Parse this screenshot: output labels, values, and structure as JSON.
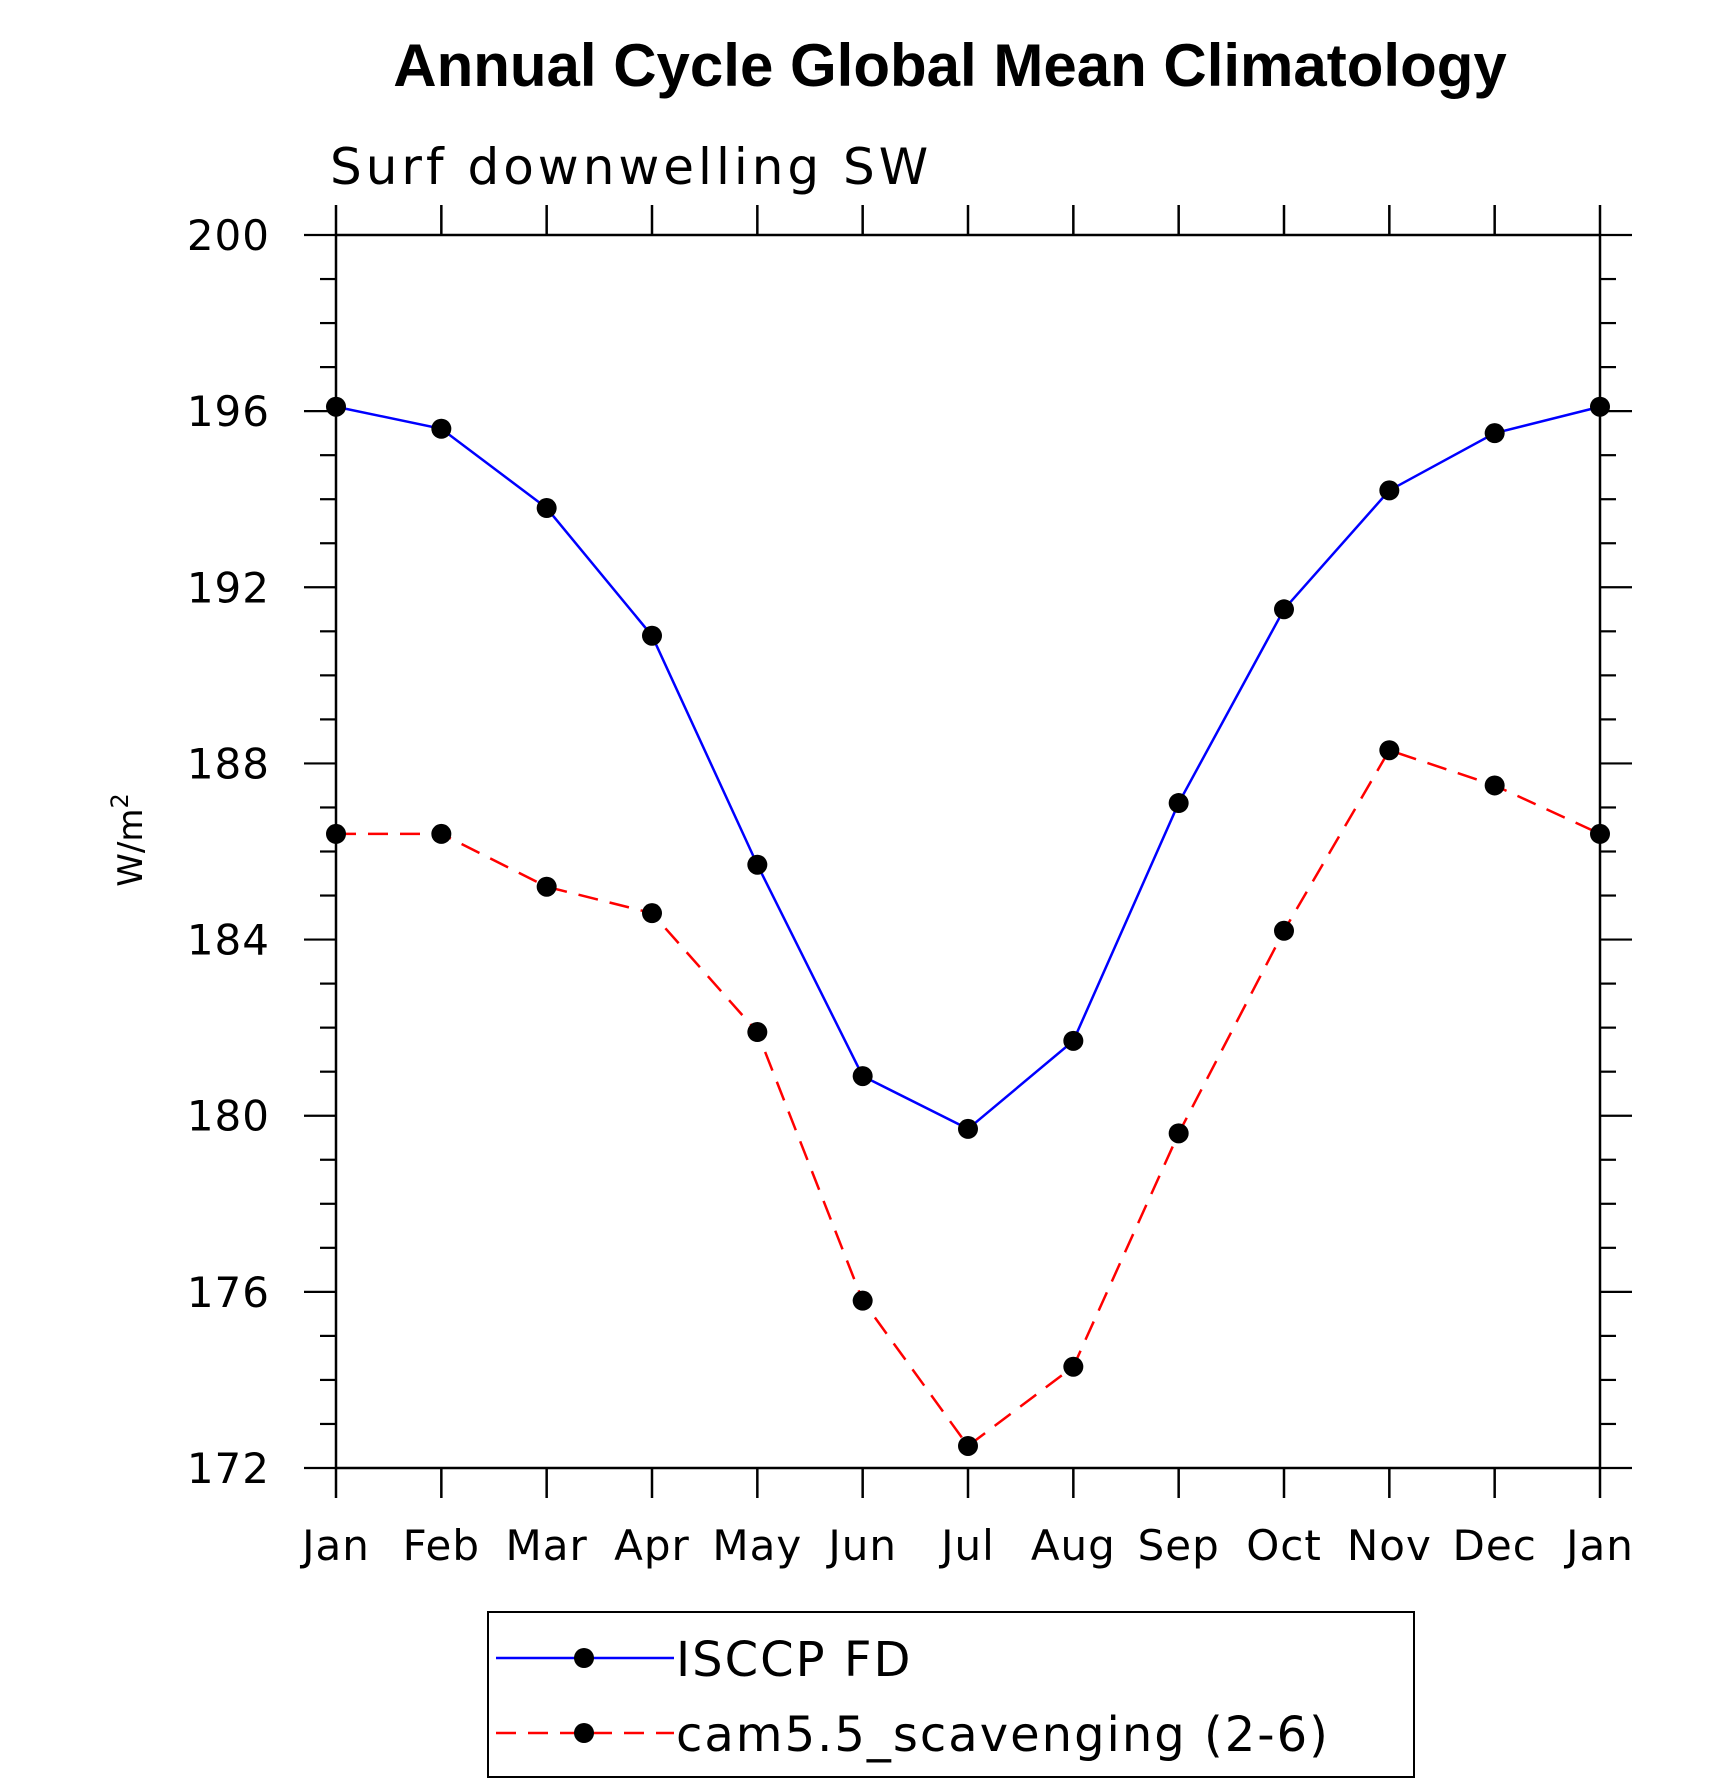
{
  "chart_data": {
    "type": "line",
    "title": "Annual Cycle Global Mean Climatology",
    "subtitle": "Surf downwelling SW",
    "ylabel": "W/m",
    "ylabel_superscript": "2",
    "xlabel": "",
    "categories": [
      "Jan",
      "Feb",
      "Mar",
      "Apr",
      "May",
      "Jun",
      "Jul",
      "Aug",
      "Sep",
      "Oct",
      "Nov",
      "Dec",
      "Jan"
    ],
    "ylim": [
      172,
      200
    ],
    "yticks": [
      172,
      176,
      180,
      184,
      188,
      192,
      196,
      200
    ],
    "yminor_step": 1,
    "series": [
      {
        "name": "ISCCP FD",
        "color": "#0000ff",
        "line_style": "solid",
        "marker": "filled-circle",
        "values": [
          196.1,
          195.6,
          193.8,
          190.9,
          185.7,
          180.9,
          179.7,
          181.7,
          187.1,
          191.5,
          194.2,
          195.5,
          196.1
        ]
      },
      {
        "name": "cam5.5_scavenging (2-6)",
        "color": "#ff0000",
        "line_style": "dashed",
        "marker": "filled-circle",
        "values": [
          186.4,
          186.4,
          185.2,
          184.6,
          181.9,
          175.8,
          172.5,
          174.3,
          179.6,
          184.2,
          188.3,
          187.5,
          186.4
        ]
      }
    ],
    "legend_position": "bottom-center",
    "grid": false
  }
}
